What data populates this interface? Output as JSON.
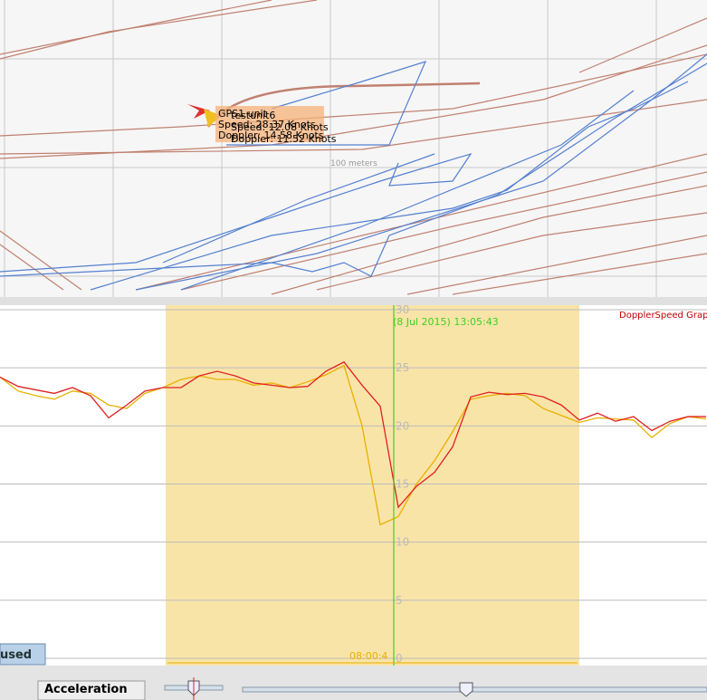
{
  "map": {
    "units": [
      {
        "name": "GPS1 unit",
        "speed": "Speed: 28.37 Knots",
        "doppler": "Doppler: 14.58 Knots"
      },
      {
        "name": "testunit6",
        "speed": "Speed: 12.08 Knots",
        "doppler": "Doppler: 11.52 Knots"
      }
    ],
    "scale": "100 meters"
  },
  "chart_data": {
    "type": "line",
    "title": "DopplerSpeed Graph",
    "time_label": "(8 Jul 2015) 13:05:43",
    "range_label": "08:00:4",
    "categories": [
      null,
      null,
      null,
      null,
      null,
      null,
      null,
      null,
      null,
      null,
      null,
      null,
      null,
      null,
      null,
      null,
      null,
      null,
      null,
      null,
      null,
      null,
      null,
      null,
      null,
      null,
      null,
      null,
      null,
      null,
      null,
      null,
      null,
      null,
      null,
      null,
      null,
      null,
      null,
      null
    ],
    "series": [
      {
        "color": "#e8b000",
        "values": [
          24.2,
          23.0,
          22.6,
          22.3,
          23.0,
          22.8,
          21.8,
          21.5,
          22.8,
          23.3,
          24.0,
          24.3,
          24.0,
          24.0,
          23.5,
          23.7,
          23.3,
          23.8,
          24.4,
          25.2,
          20,
          11.5,
          12.2,
          15.0,
          17.0,
          19.5,
          22.3,
          22.6,
          22.8,
          22.6,
          21.5,
          20.9,
          20.3,
          20.7,
          20.6,
          20.5,
          19.0,
          20.2,
          20.8,
          20.6
        ]
      },
      {
        "color": "#e02020",
        "values": [
          24.2,
          23.4,
          23.1,
          22.8,
          23.3,
          22.6,
          20.7,
          21.8,
          23.0,
          23.3,
          23.3,
          24.3,
          24.7,
          24.3,
          23.7,
          23.5,
          23.3,
          23.4,
          24.7,
          25.5,
          23.5,
          21.7,
          13.0,
          14.8,
          16.0,
          18.2,
          22.5,
          22.9,
          22.7,
          22.8,
          22.5,
          21.8,
          20.5,
          21.1,
          20.4,
          20.8,
          19.6,
          20.4,
          20.8,
          20.8
        ]
      }
    ],
    "ylim": [
      0,
      30
    ],
    "yticks": [
      0,
      5,
      10,
      15,
      20,
      25,
      30
    ],
    "grid": true
  },
  "controls": {
    "status": "used",
    "acceleration": "Acceleration"
  }
}
